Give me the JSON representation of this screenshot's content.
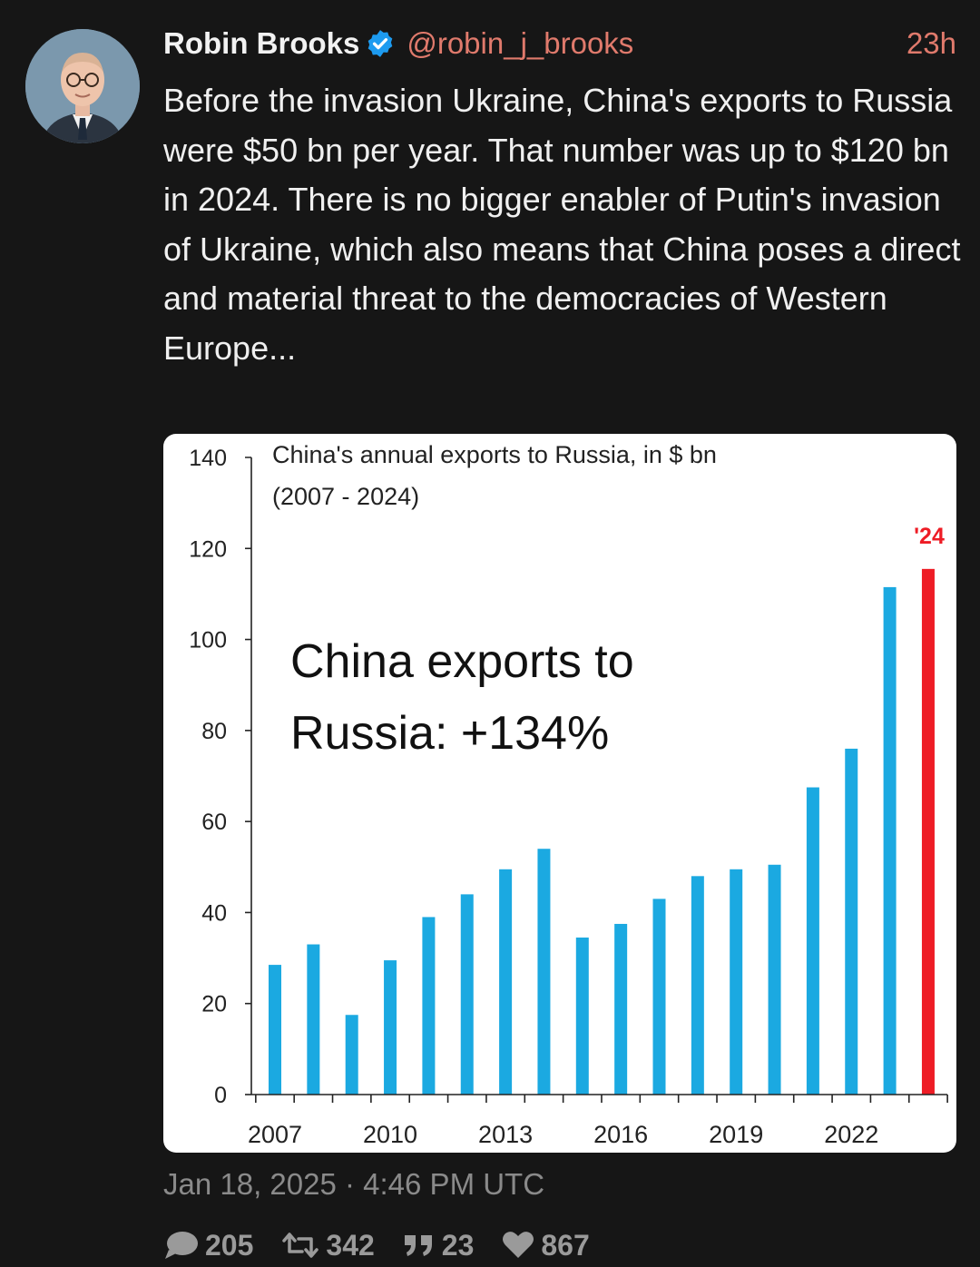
{
  "author": {
    "name": "Robin Brooks",
    "handle": "@robin_j_brooks",
    "time_ago": "23h",
    "avatar_icon": "avatar-photo"
  },
  "tweet": {
    "text": "Before the invasion Ukraine, China's exports to Russia were $50 bn per year. That number was up to $120 bn in 2024. There is no bigger enabler of Putin's invasion of Ukraine, which also means that China poses a direct and material threat to the democracies of Western Europe...",
    "timestamp": "Jan 18, 2025 · 4:46 PM UTC"
  },
  "stats": {
    "replies": "205",
    "retweets": "342",
    "quotes": "23",
    "likes": "867"
  },
  "chart_data": {
    "type": "bar",
    "title": "China's annual exports to Russia, in $ bn",
    "subtitle": "(2007 - 2024)",
    "annotation": [
      "China exports to",
      "Russia: +134%"
    ],
    "highlight_label": "'24",
    "categories": [
      "2007",
      "2008",
      "2009",
      "2010",
      "2011",
      "2012",
      "2013",
      "2014",
      "2015",
      "2016",
      "2017",
      "2018",
      "2019",
      "2020",
      "2021",
      "2022",
      "2023",
      "2024"
    ],
    "values": [
      28.5,
      33,
      17.5,
      29.5,
      39,
      44,
      49.5,
      54,
      34.5,
      37.5,
      43,
      48,
      49.5,
      50.5,
      67.5,
      76,
      111.5,
      115.5
    ],
    "highlight_index": 17,
    "x_tick_labels": [
      "2007",
      "2010",
      "2013",
      "2016",
      "2019",
      "2022"
    ],
    "y_ticks": [
      0,
      20,
      40,
      60,
      80,
      100,
      120,
      140
    ],
    "ylim": [
      0,
      140
    ],
    "colors": {
      "bar": "#1ba9e1",
      "highlight": "#ee1c25"
    }
  }
}
